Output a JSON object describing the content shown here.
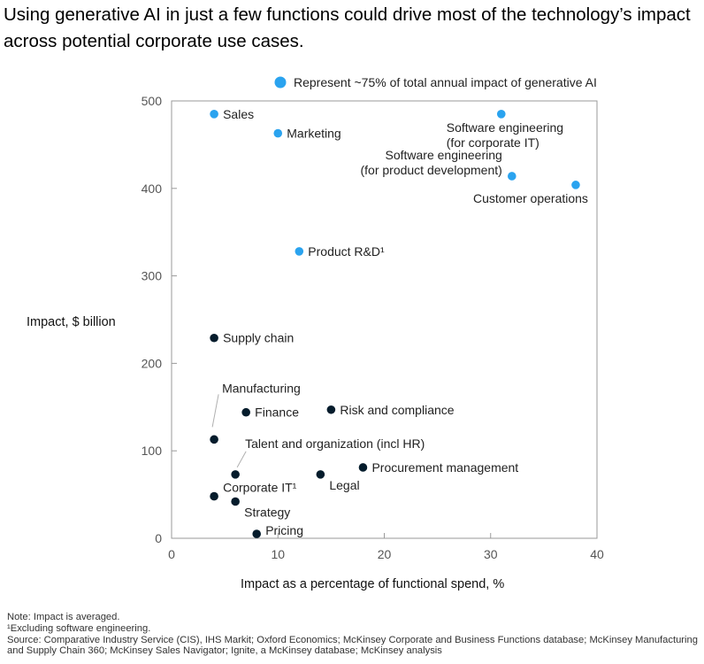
{
  "title": "Using generative AI in just a few functions could drive most of the technology’s impact across potential corporate use cases.",
  "legend_text": "Represent ~75% of total annual impact of generative AI",
  "notes": {
    "note": "Note: Impact is averaged.",
    "footnote": "¹Excluding software engineering.",
    "source_line1": "Source: Comparative Industry Service (CIS), IHS Markit; Oxford Economics; McKinsey Corporate and Business Functions database; McKinsey Manufacturing",
    "source_line2": "and Supply Chain 360; McKinsey Sales Navigator; Ignite, a McKinsey database; McKinsey analysis"
  },
  "chart_data": {
    "type": "scatter",
    "xlabel": "Impact as a percentage of functional spend, %",
    "ylabel": "Impact, $ billion",
    "xlim": [
      0,
      40
    ],
    "ylim": [
      0,
      500
    ],
    "xticks": [
      0,
      10,
      20,
      30,
      40
    ],
    "yticks": [
      0,
      100,
      200,
      300,
      400,
      500
    ],
    "grid": false,
    "colors": {
      "highlight": "#2aa3ef",
      "other": "#051c2c"
    },
    "points": [
      {
        "label": "Sales",
        "x": 4,
        "y": 485,
        "highlight": true
      },
      {
        "label": "Marketing",
        "x": 10,
        "y": 463,
        "highlight": true
      },
      {
        "label": "Software engineering (for corporate IT)",
        "lines": [
          "Software engineering",
          "(for corporate IT)"
        ],
        "x": 31,
        "y": 485,
        "highlight": true
      },
      {
        "label": "Software engineering (for product development)",
        "lines": [
          "Software engineering",
          "(for product development)"
        ],
        "x": 32,
        "y": 414,
        "highlight": true
      },
      {
        "label": "Customer operations",
        "x": 38,
        "y": 404,
        "highlight": true
      },
      {
        "label": "Product R&D¹",
        "x": 12,
        "y": 328,
        "highlight": true
      },
      {
        "label": "Supply chain",
        "x": 4,
        "y": 229,
        "highlight": false
      },
      {
        "label": "Manufacturing",
        "x": 4,
        "y": 113,
        "highlight": false
      },
      {
        "label": "Finance",
        "x": 7,
        "y": 144,
        "highlight": false
      },
      {
        "label": "Risk and compliance",
        "x": 15,
        "y": 147,
        "highlight": false
      },
      {
        "label": "Talent and organization (incl HR)",
        "x": 6,
        "y": 73,
        "highlight": false
      },
      {
        "label": "Procurement management",
        "x": 18,
        "y": 81,
        "highlight": false
      },
      {
        "label": "Legal",
        "x": 14,
        "y": 73,
        "highlight": false
      },
      {
        "label": "Corporate IT¹",
        "x": 4,
        "y": 48,
        "highlight": false
      },
      {
        "label": "Strategy",
        "x": 6,
        "y": 42,
        "highlight": false
      },
      {
        "label": "Pricing",
        "x": 8,
        "y": 5,
        "highlight": false
      }
    ]
  }
}
